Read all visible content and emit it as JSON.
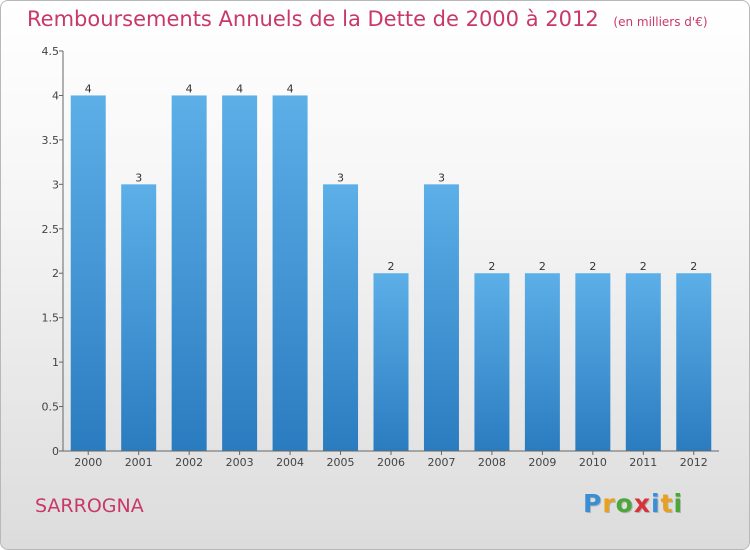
{
  "header": {
    "title": "Remboursements Annuels de la Dette de 2000 à 2012",
    "unit": "(en milliers d'€)"
  },
  "footer": {
    "commune": "SARROGNA",
    "brand": [
      "P",
      "r",
      "o",
      "x",
      "i",
      "t",
      "i"
    ]
  },
  "colors": {
    "title": "#c8386a",
    "bar_top": "#5dafe8",
    "bar_bottom": "#2a7cc0",
    "brand_letters": [
      "#3a8fd4",
      "#e8a020",
      "#4aa83a",
      "#d6333a",
      "#3a8fd4",
      "#e8a020",
      "#4aa83a"
    ]
  },
  "chart_data": {
    "type": "bar",
    "title": "Remboursements Annuels de la Dette de 2000 à 2012",
    "ylabel": "en milliers d'€",
    "xlabel": "",
    "categories": [
      "2000",
      "2001",
      "2002",
      "2003",
      "2004",
      "2005",
      "2006",
      "2007",
      "2008",
      "2009",
      "2010",
      "2011",
      "2012"
    ],
    "values": [
      4,
      3,
      4,
      4,
      4,
      3,
      2,
      3,
      2,
      2,
      2,
      2,
      2
    ],
    "value_labels": [
      "4",
      "3",
      "4",
      "4",
      "4",
      "3",
      "2",
      "3",
      "2",
      "2",
      "2",
      "2",
      "2"
    ],
    "ylim": [
      0,
      4.5
    ],
    "yticks": [
      0,
      0.5,
      1,
      1.5,
      2,
      2.5,
      3,
      3.5,
      4,
      4.5
    ],
    "ytick_labels": [
      "0",
      "0.5",
      "1",
      "1.5",
      "2",
      "2.5",
      "3",
      "3.5",
      "4",
      "4.5"
    ]
  }
}
